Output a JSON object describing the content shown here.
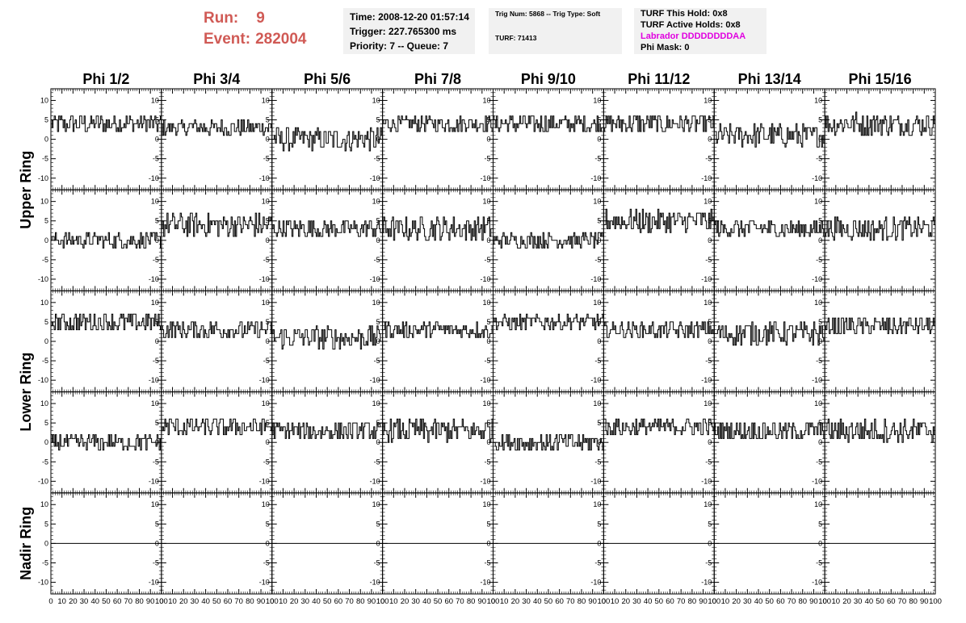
{
  "header": {
    "run_label": "Run:",
    "run_value": "9",
    "event_label": "Event:",
    "event_value": "282004"
  },
  "info_box_1": {
    "time": "Time: 2008-12-20 01:57:14",
    "trigger": "Trigger: 227.765300 ms",
    "priority": "Priority: 7 -- Queue: 7"
  },
  "info_box_2": {
    "trig": "Trig Num: 5868 -- Trig Type: Soft",
    "turf": "TURF: 71413"
  },
  "info_box_3": {
    "this_hold": "TURF This Hold: 0x8",
    "active_holds": "TURF Active Holds: 0x8",
    "labrador": "Labrador DDDDDDDDAA",
    "phi_mask": "Phi Mask: 0"
  },
  "colors": {
    "header_red": "#d05a55",
    "labrador_magenta": "#e000e0",
    "trace": "#000000",
    "info_bg": "#f1f1f1"
  },
  "chart_data": {
    "type": "line",
    "columns": [
      "Phi 1/2",
      "Phi 3/4",
      "Phi 5/6",
      "Phi 7/8",
      "Phi 9/10",
      "Phi 11/12",
      "Phi 13/14",
      "Phi 15/16"
    ],
    "row_groups": [
      {
        "label": "Upper Ring",
        "rows": [
          0,
          1
        ]
      },
      {
        "label": "Lower Ring",
        "rows": [
          2,
          3
        ]
      },
      {
        "label": "Nadir Ring",
        "rows": [
          4
        ]
      }
    ],
    "xlim": [
      0,
      100
    ],
    "ylim": [
      -13,
      13
    ],
    "y_ticks": [
      -10,
      -5,
      0,
      5,
      10
    ],
    "x_tick_labels": [
      "0",
      "10",
      "20",
      "30",
      "40",
      "50",
      "60",
      "70",
      "80",
      "90",
      "100"
    ],
    "n_samples": 100,
    "baselines": [
      [
        4,
        3,
        0,
        4,
        4,
        4,
        1,
        4
      ],
      [
        0,
        4,
        3,
        3,
        0,
        5,
        3,
        3
      ],
      [
        5,
        3,
        1,
        3,
        5,
        3,
        2,
        4
      ],
      [
        0,
        4,
        3,
        3,
        0,
        4,
        3,
        3
      ],
      [
        0,
        0,
        0,
        0,
        0,
        0,
        0,
        0
      ]
    ],
    "noise": [
      [
        2.5,
        2,
        3,
        2,
        2.5,
        2.5,
        3,
        3
      ],
      [
        2,
        3,
        2.5,
        3,
        2,
        3,
        2.5,
        3
      ],
      [
        2.5,
        2.5,
        3,
        2,
        2,
        2,
        3,
        2.5
      ],
      [
        2,
        2.5,
        2.5,
        3,
        2.5,
        2.5,
        2.5,
        3
      ],
      [
        0,
        0,
        0,
        0,
        0,
        0,
        0,
        0
      ]
    ]
  }
}
